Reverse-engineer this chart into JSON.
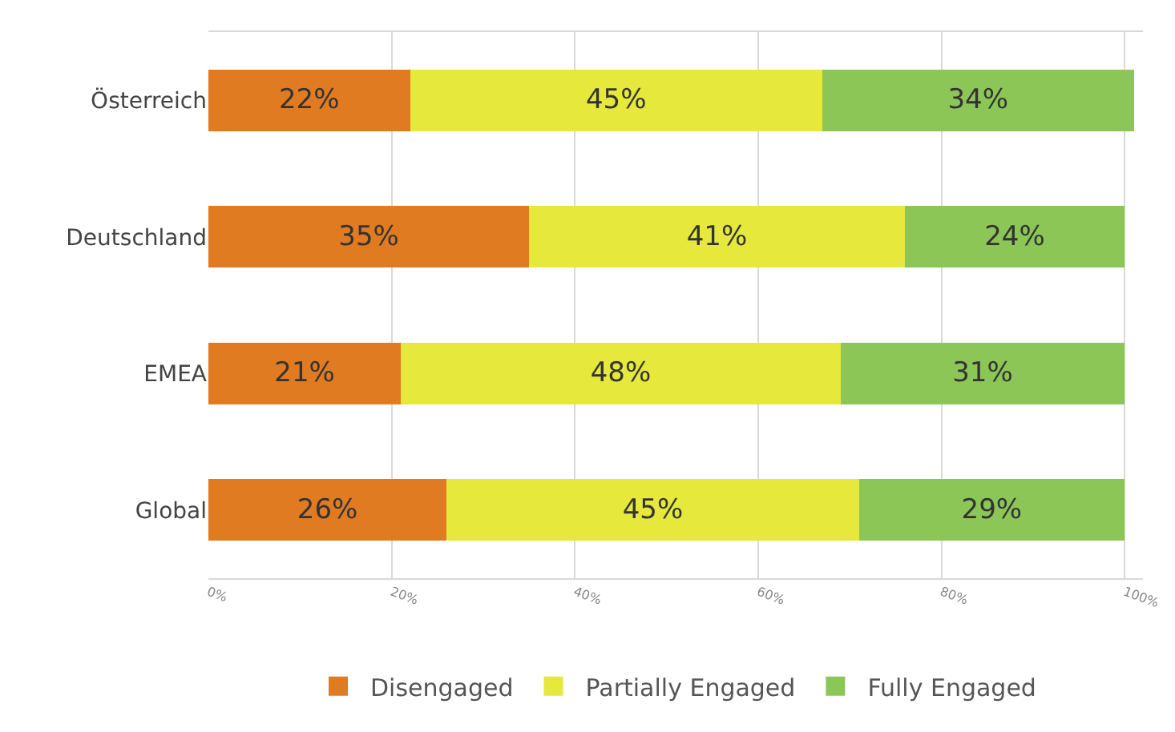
{
  "chart_data": {
    "type": "bar",
    "orientation": "horizontal",
    "stacked": true,
    "categories": [
      "Österreich",
      "Deutschland",
      "EMEA",
      "Global"
    ],
    "series": [
      {
        "name": "Disengaged",
        "color": "#e07b22",
        "values": [
          22,
          35,
          21,
          26
        ],
        "value_labels": [
          "22%",
          "35%",
          "21%",
          "26%"
        ]
      },
      {
        "name": "Partially Engaged",
        "color": "#e6e83c",
        "values": [
          45,
          41,
          48,
          45
        ],
        "value_labels": [
          "45%",
          "41%",
          "48%",
          "45%"
        ]
      },
      {
        "name": "Fully Engaged",
        "color": "#8cc657",
        "values": [
          34,
          24,
          31,
          29
        ],
        "value_labels": [
          "34%",
          "24%",
          "31%",
          "29%"
        ]
      }
    ],
    "xlim": [
      0,
      102
    ],
    "xticks": [
      {
        "value": 0,
        "label": "0%"
      },
      {
        "value": 20,
        "label": "20%"
      },
      {
        "value": 40,
        "label": "40%"
      },
      {
        "value": 60,
        "label": "60%"
      },
      {
        "value": 80,
        "label": "80%"
      },
      {
        "value": 100,
        "label": "100%"
      }
    ],
    "grid": "x",
    "legend": "bottom"
  }
}
